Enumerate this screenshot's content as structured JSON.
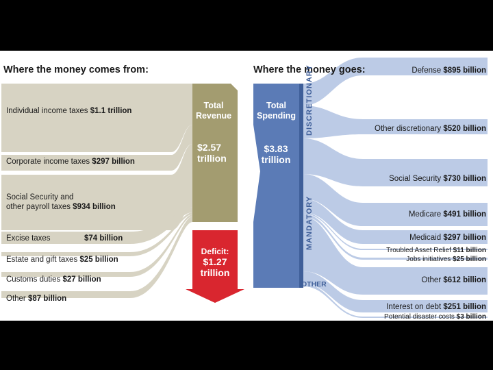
{
  "headers": {
    "comes_from": "Where the money comes from:",
    "goes": "Where the money goes:"
  },
  "revenue": [
    {
      "name": "Individual income taxes",
      "value": "$1.1 trillion"
    },
    {
      "name": "Corporate income taxes",
      "value": "$297 billion"
    },
    {
      "name_line1": "Social Security and",
      "name": "other payroll taxes",
      "value": "$934 billion"
    },
    {
      "name": "Excise taxes",
      "value": "$74 billion"
    },
    {
      "name": "Estate and gift taxes",
      "value": "$25 billion"
    },
    {
      "name": "Customs duties",
      "value": "$27 billion"
    },
    {
      "name": "Other",
      "value": "$87 billion"
    }
  ],
  "total_revenue": {
    "title_line1": "Total",
    "title_line2": "Revenue",
    "amount": "$2.57",
    "unit": "trillion"
  },
  "total_spending": {
    "title_line1": "Total",
    "title_line2": "Spending",
    "amount": "$3.83",
    "unit": "trillion"
  },
  "deficit": {
    "title": "Deficit:",
    "amount": "$1.27",
    "unit": "trillion"
  },
  "categories": {
    "discretionary": "DISCRETIONARY",
    "mandatory": "MANDATORY",
    "other": "OTHER"
  },
  "spending": [
    {
      "name": "Defense",
      "value": "$895 billion"
    },
    {
      "name": "Other discretionary",
      "value": "$520 billion"
    },
    {
      "name": "Social Security",
      "value": "$730 billion"
    },
    {
      "name": "Medicare",
      "value": "$491 billion"
    },
    {
      "name": "Medicaid",
      "value": "$297 billion"
    },
    {
      "name": "Troubled Asset Relief",
      "value": "$11 billion"
    },
    {
      "name": "Jobs initiatives",
      "value": "$25 billion"
    },
    {
      "name": "Other",
      "value": "$612 billion"
    },
    {
      "name": "Interest on debt",
      "value": "$251 billion"
    },
    {
      "name": "Potential disaster costs",
      "value": "$3 billion"
    }
  ],
  "colors": {
    "revenue_flow": "#d7d3c3",
    "revenue_box": "#a39c70",
    "spending_box": "#5b7bb6",
    "spending_flow": "#bccbe6",
    "deficit": "#d9262f"
  }
}
